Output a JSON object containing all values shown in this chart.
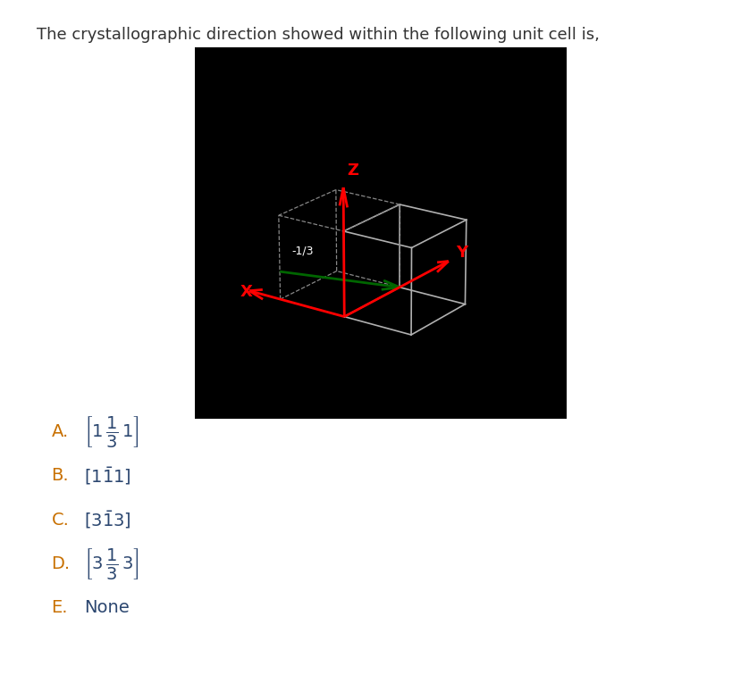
{
  "title": "The crystallographic direction showed within the following unit cell is,",
  "title_fontsize": 13,
  "title_color": "#333333",
  "bg_color": "#000000",
  "cube_color": "#c0c0c0",
  "axis_color": "#cc0000",
  "arrow_color": "#006600",
  "options": [
    {
      "label": "A.",
      "text": "[1\\tfrac{1}{3}1]",
      "bar_over": "1/3"
    },
    {
      "label": "B.",
      "text": "[1\\bar{1}1]",
      "bar_over": "11"
    },
    {
      "label": "C.",
      "text": "[3\\bar{1}3]",
      "bar_over": "1"
    },
    {
      "label": "D.",
      "text": "[3\\tfrac{1}{3}3]",
      "bar_over": "1/3"
    },
    {
      "label": "E.",
      "text": "None",
      "bar_over": ""
    }
  ]
}
